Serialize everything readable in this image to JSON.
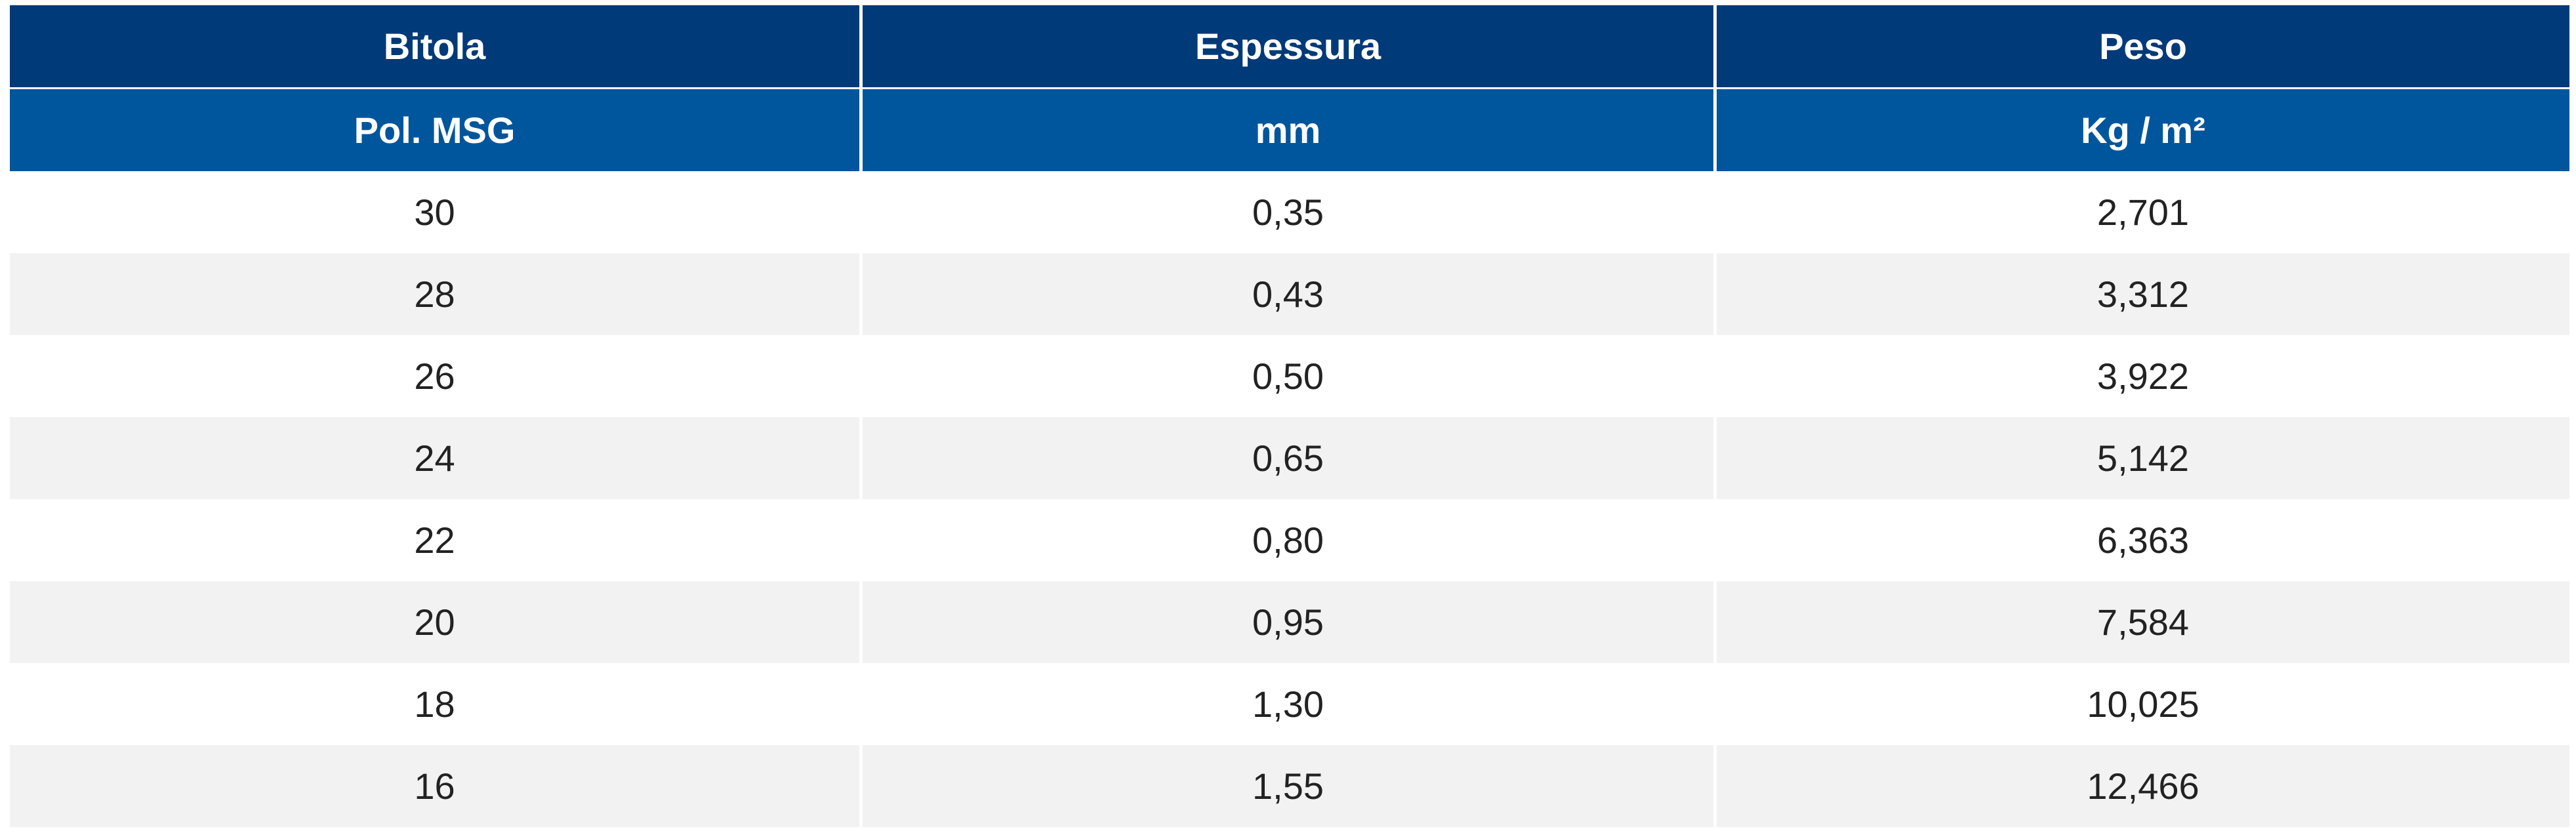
{
  "table": {
    "header": [
      [
        "Bitola",
        "Espessura",
        "Peso"
      ],
      [
        "Pol. MSG",
        "mm",
        "Kg / m²"
      ]
    ],
    "rows": [
      [
        "30",
        "0,35",
        "2,701"
      ],
      [
        "28",
        "0,43",
        "3,312"
      ],
      [
        "26",
        "0,50",
        "3,922"
      ],
      [
        "24",
        "0,65",
        "5,142"
      ],
      [
        "22",
        "0,80",
        "6,363"
      ],
      [
        "20",
        "0,95",
        "7,584"
      ],
      [
        "18",
        "1,30",
        "10,025"
      ],
      [
        "16",
        "1,55",
        "12,466"
      ]
    ]
  }
}
